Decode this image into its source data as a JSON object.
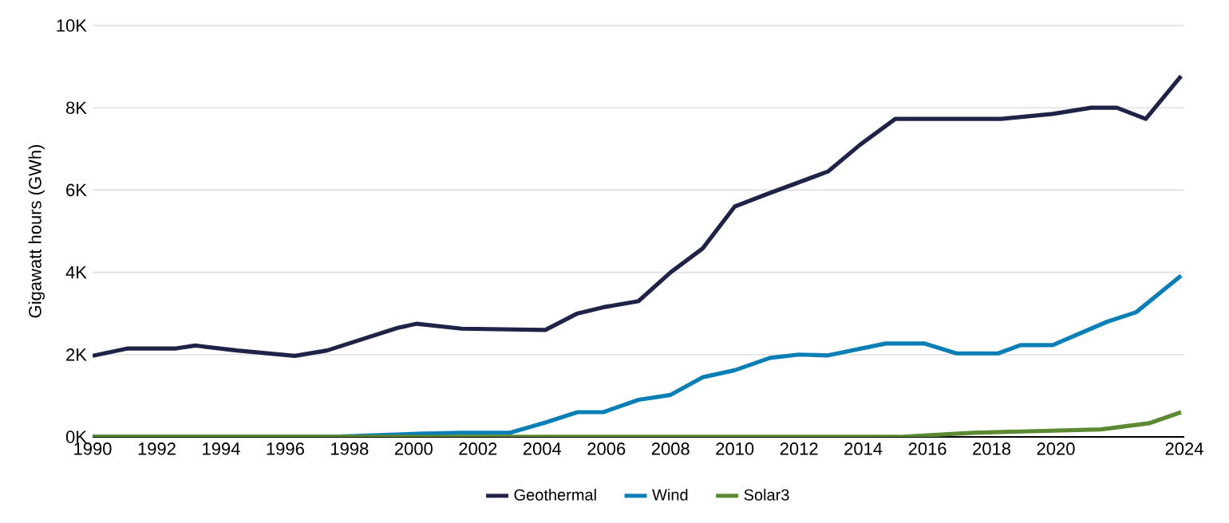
{
  "chart_data": {
    "type": "line",
    "ylabel": "Gigawatt hours (GWh)",
    "xlim": [
      1990,
      2024
    ],
    "xticks": [
      1990,
      1992,
      1994,
      1996,
      1998,
      2000,
      2002,
      2004,
      2006,
      2008,
      2010,
      2012,
      2014,
      2016,
      2018,
      2020,
      2024
    ],
    "ylim": [
      0,
      10000
    ],
    "yticks": [
      {
        "value": 0,
        "label": "0K"
      },
      {
        "value": 2000,
        "label": "2K"
      },
      {
        "value": 4000,
        "label": "4K"
      },
      {
        "value": 6000,
        "label": "6K"
      },
      {
        "value": 8000,
        "label": "8K"
      },
      {
        "value": 10000,
        "label": "10K"
      }
    ],
    "grid": "y",
    "legend": "bottom",
    "marker": "none",
    "line_style": "solid",
    "series": [
      {
        "name": "Geothermal",
        "color": "#1f2347",
        "x": [
          1990,
          1991.1,
          1992.6,
          1993.2,
          1994.5,
          1996.3,
          1997.3,
          1999.5,
          2000.1,
          2001.5,
          2004.1,
          2005.1,
          2005.9,
          2007.0,
          2008.0,
          2009.0,
          2010.0,
          2011.0,
          2012.9,
          2013.9,
          2015.0,
          2018.3,
          2019.9,
          2021.1,
          2021.9,
          2022.8,
          2023.9
        ],
        "values": [
          1970,
          2150,
          2150,
          2220,
          2100,
          1970,
          2100,
          2650,
          2750,
          2630,
          2600,
          3000,
          3150,
          3300,
          4000,
          4580,
          5600,
          5900,
          6450,
          7100,
          7730,
          7730,
          7850,
          8000,
          8000,
          7730,
          8770
        ]
      },
      {
        "name": "Wind",
        "color": "#0a7fb5",
        "x": [
          1990,
          1997.3,
          2000.3,
          2001.5,
          2003.0,
          2004.1,
          2005.1,
          2005.9,
          2007.0,
          2008.0,
          2009.0,
          2010.0,
          2011.1,
          2012.0,
          2012.9,
          2014.7,
          2015.9,
          2016.9,
          2018.2,
          2018.9,
          2019.9,
          2021.6,
          2022.5,
          2023.9
        ],
        "values": [
          0,
          0,
          80,
          100,
          100,
          350,
          600,
          600,
          900,
          1020,
          1450,
          1620,
          1920,
          2000,
          1980,
          2270,
          2270,
          2030,
          2030,
          2230,
          2230,
          2800,
          3030,
          3920
        ]
      },
      {
        "name": "Solar3",
        "color": "#5b8a32",
        "x": [
          1990,
          2015.1,
          2017.4,
          2021.4,
          2022.9,
          2023.9
        ],
        "values": [
          0,
          0,
          100,
          180,
          330,
          600
        ]
      }
    ]
  }
}
